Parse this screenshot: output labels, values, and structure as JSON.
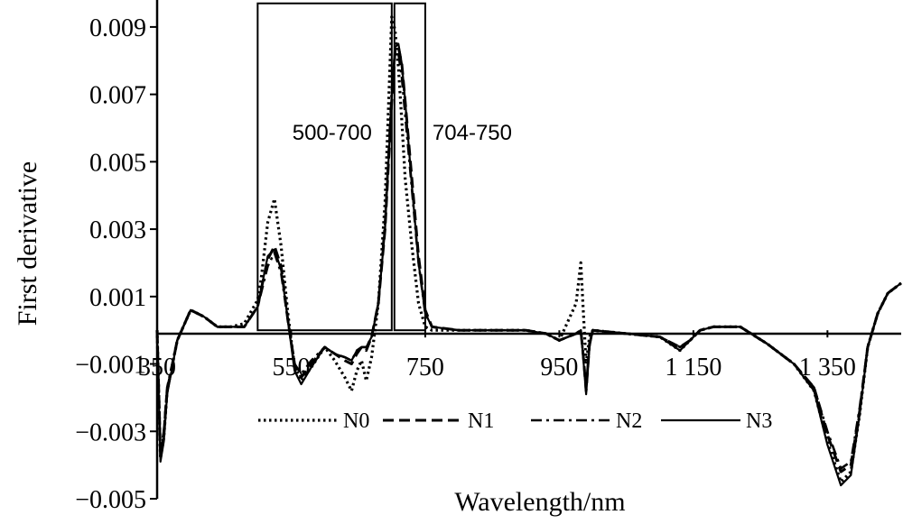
{
  "chart_data": {
    "type": "line",
    "title": "",
    "xlabel": "Wavelength/nm",
    "ylabel": "First derivative",
    "xlim": [
      350,
      1460
    ],
    "ylim": [
      -0.005,
      0.0098
    ],
    "x_ticks": [
      350,
      550,
      750,
      950,
      1150,
      1350
    ],
    "x_tick_labels": [
      "350",
      "550",
      "750",
      "950",
      "1 150",
      "1 350"
    ],
    "y_ticks": [
      0.009,
      0.007,
      0.005,
      0.003,
      0.001,
      -0.001,
      -0.003,
      -0.005
    ],
    "y_tick_labels": [
      "0.009",
      "0.007",
      "0.005",
      "0.003",
      "0.001",
      "−0.001",
      "−0.003",
      "−0.005"
    ],
    "annotations": [
      {
        "text": "500-700",
        "x_range": [
          500,
          700
        ]
      },
      {
        "text": "704-750",
        "x_range": [
          704,
          750
        ]
      }
    ],
    "legend": {
      "position": "bottom-center",
      "entries": [
        "N0",
        "N1",
        "N2",
        "N3"
      ]
    },
    "series": [
      {
        "name": "N0",
        "style": "dotted",
        "x": [
          350,
          355,
          360,
          365,
          380,
          400,
          420,
          440,
          460,
          480,
          500,
          505,
          515,
          525,
          535,
          545,
          555,
          565,
          580,
          600,
          615,
          630,
          640,
          648,
          655,
          662,
          670,
          680,
          690,
          700,
          705,
          710,
          715,
          720,
          730,
          740,
          750,
          760,
          800,
          850,
          900,
          930,
          950,
          975,
          982,
          986,
          990,
          995,
          1000,
          1050,
          1100,
          1130,
          1145,
          1160,
          1180,
          1220,
          1260,
          1300,
          1330,
          1350,
          1370,
          1385,
          1398,
          1410,
          1425,
          1440,
          1460
        ],
        "y": [
          0.0,
          -0.0038,
          -0.0032,
          -0.0018,
          -0.0003,
          0.0006,
          0.0004,
          0.0001,
          0.0001,
          0.0002,
          0.0009,
          0.0015,
          0.0032,
          0.0039,
          0.0025,
          0.0005,
          -0.0011,
          -0.0015,
          -0.0011,
          -0.0005,
          -0.0009,
          -0.0014,
          -0.0018,
          -0.0012,
          -0.0009,
          -0.0015,
          -0.0008,
          0.0008,
          0.0038,
          0.0093,
          0.0089,
          0.0078,
          0.0062,
          0.0045,
          0.0025,
          0.0008,
          0.0001,
          0.0,
          0.0,
          0.0,
          0.0,
          -0.0001,
          -0.0003,
          0.0008,
          0.002,
          0.0005,
          -0.001,
          -0.0002,
          0.0,
          -0.0001,
          -0.0002,
          -0.0006,
          -0.0003,
          0.0,
          0.0001,
          0.0001,
          -0.0004,
          -0.001,
          -0.0018,
          -0.0033,
          -0.0045,
          -0.0042,
          -0.0025,
          -0.0005,
          0.0005,
          0.0011,
          0.0014
        ]
      },
      {
        "name": "N1",
        "style": "dashed",
        "x": [
          350,
          355,
          360,
          365,
          380,
          400,
          420,
          440,
          460,
          480,
          500,
          505,
          515,
          525,
          535,
          545,
          555,
          565,
          580,
          600,
          615,
          630,
          640,
          648,
          655,
          662,
          670,
          680,
          690,
          700,
          705,
          710,
          715,
          720,
          730,
          740,
          750,
          760,
          800,
          850,
          900,
          930,
          950,
          975,
          982,
          986,
          990,
          995,
          1000,
          1050,
          1100,
          1130,
          1145,
          1160,
          1180,
          1220,
          1260,
          1300,
          1330,
          1350,
          1370,
          1385,
          1398,
          1410,
          1425,
          1440,
          1460
        ],
        "y": [
          0.0,
          -0.0037,
          -0.0031,
          -0.0018,
          -0.0003,
          0.0006,
          0.0004,
          0.0001,
          0.0001,
          0.0001,
          0.0007,
          0.0012,
          0.0021,
          0.0025,
          0.0019,
          0.0003,
          -0.001,
          -0.0014,
          -0.001,
          -0.0005,
          -0.0007,
          -0.0009,
          -0.001,
          -0.0007,
          -0.0005,
          -0.0006,
          -0.0002,
          0.0008,
          0.003,
          0.0068,
          0.0083,
          0.0084,
          0.0079,
          0.0068,
          0.0045,
          0.0022,
          0.0006,
          0.0001,
          0.0,
          0.0,
          0.0,
          -0.0001,
          -0.0003,
          -0.0001,
          0.0,
          -0.0008,
          -0.0018,
          -0.0004,
          0.0,
          -0.0001,
          -0.0002,
          -0.0005,
          -0.0003,
          0.0,
          0.0001,
          0.0001,
          -0.0004,
          -0.001,
          -0.0017,
          -0.0031,
          -0.0042,
          -0.004,
          -0.0024,
          -0.0005,
          0.0005,
          0.0011,
          0.0014
        ]
      },
      {
        "name": "N2",
        "style": "dash-dot",
        "x": [
          350,
          355,
          360,
          365,
          380,
          400,
          420,
          440,
          460,
          480,
          500,
          505,
          515,
          525,
          535,
          545,
          555,
          565,
          580,
          600,
          615,
          630,
          640,
          648,
          655,
          662,
          670,
          680,
          690,
          700,
          705,
          710,
          715,
          720,
          730,
          740,
          750,
          760,
          800,
          850,
          900,
          930,
          950,
          975,
          982,
          986,
          990,
          995,
          1000,
          1050,
          1100,
          1130,
          1145,
          1160,
          1180,
          1220,
          1260,
          1300,
          1330,
          1350,
          1370,
          1385,
          1398,
          1410,
          1425,
          1440,
          1460
        ],
        "y": [
          0.0,
          -0.0036,
          -0.003,
          -0.0017,
          -0.0003,
          0.0006,
          0.0004,
          0.0001,
          0.0001,
          0.0001,
          0.0007,
          0.0011,
          0.0019,
          0.0023,
          0.0017,
          0.0003,
          -0.001,
          -0.0013,
          -0.0009,
          -0.0005,
          -0.0007,
          -0.0008,
          -0.0009,
          -0.0006,
          -0.0005,
          -0.0005,
          -0.0002,
          0.0008,
          0.0032,
          0.0071,
          0.0083,
          0.0082,
          0.0075,
          0.0064,
          0.0042,
          0.002,
          0.0005,
          0.0001,
          0.0,
          0.0,
          0.0,
          -0.0001,
          -0.0003,
          -0.0001,
          0.0,
          -0.0008,
          -0.0017,
          -0.0004,
          0.0,
          -0.0001,
          -0.0002,
          -0.0005,
          -0.0003,
          0.0,
          0.0001,
          0.0001,
          -0.0004,
          -0.001,
          -0.0017,
          -0.003,
          -0.0041,
          -0.0039,
          -0.0023,
          -0.0005,
          0.0005,
          0.0011,
          0.0014
        ]
      },
      {
        "name": "N3",
        "style": "solid",
        "x": [
          350,
          355,
          360,
          365,
          380,
          400,
          420,
          440,
          460,
          480,
          500,
          505,
          515,
          525,
          535,
          545,
          555,
          565,
          580,
          600,
          615,
          630,
          640,
          648,
          655,
          662,
          670,
          680,
          690,
          700,
          705,
          710,
          715,
          720,
          730,
          740,
          750,
          760,
          800,
          850,
          900,
          930,
          950,
          975,
          982,
          986,
          990,
          995,
          1000,
          1050,
          1100,
          1130,
          1145,
          1160,
          1180,
          1220,
          1260,
          1300,
          1330,
          1350,
          1370,
          1385,
          1398,
          1410,
          1425,
          1440,
          1460
        ],
        "y": [
          0.0,
          -0.0039,
          -0.0033,
          -0.0019,
          -0.0003,
          0.0006,
          0.0004,
          0.0001,
          0.0001,
          0.0001,
          0.0007,
          0.0012,
          0.0022,
          0.0024,
          0.0018,
          0.0003,
          -0.0012,
          -0.0016,
          -0.0011,
          -0.0005,
          -0.0007,
          -0.0008,
          -0.0009,
          -0.0006,
          -0.0005,
          -0.0005,
          -0.0002,
          0.0008,
          0.003,
          0.0069,
          0.0084,
          0.0085,
          0.0079,
          0.0068,
          0.0043,
          0.002,
          0.0005,
          0.0001,
          0.0,
          0.0,
          0.0,
          -0.0001,
          -0.0003,
          -0.0001,
          0.0,
          -0.0009,
          -0.0019,
          -0.0005,
          0.0,
          -0.0001,
          -0.0002,
          -0.0006,
          -0.0003,
          0.0,
          0.0001,
          0.0001,
          -0.0004,
          -0.001,
          -0.0018,
          -0.0034,
          -0.0046,
          -0.0043,
          -0.0025,
          -0.0005,
          0.0005,
          0.0011,
          0.0014
        ]
      }
    ]
  }
}
